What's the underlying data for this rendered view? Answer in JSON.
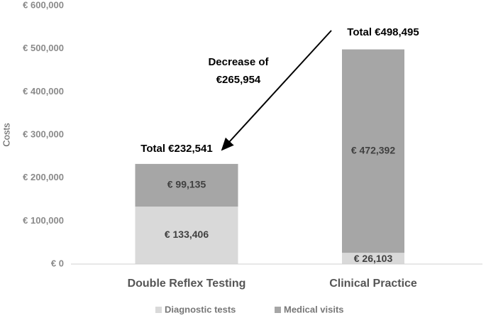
{
  "chart_data": {
    "type": "bar",
    "stacked": true,
    "y_label": "Costs",
    "categories": [
      "Double Reflex Testing",
      "Clinical Practice"
    ],
    "series": [
      {
        "name": "Diagnostic tests",
        "color": "#d9d9d9",
        "values": [
          133406,
          26103
        ],
        "value_labels": [
          "€ 133,406",
          "€ 26,103"
        ]
      },
      {
        "name": "Medical visits",
        "color": "#a6a6a6",
        "values": [
          99135,
          472392
        ],
        "value_labels": [
          "€ 99,135",
          "€ 472,392"
        ]
      }
    ],
    "ylim": [
      0,
      600000
    ],
    "yticks": [
      {
        "value": 0,
        "label": "€ 0"
      },
      {
        "value": 100000,
        "label": "€ 100,000"
      },
      {
        "value": 200000,
        "label": "€ 200,000"
      },
      {
        "value": 300000,
        "label": "€ 300,000"
      },
      {
        "value": 400000,
        "label": "€ 400,000"
      },
      {
        "value": 500000,
        "label": "€ 500,000"
      },
      {
        "value": 600000,
        "label": "€ 600,000"
      }
    ],
    "annotations": [
      "Total €232,541",
      "Total €498,495",
      "Decrease of",
      "€265,954"
    ],
    "legend": "bottom",
    "grid": false
  }
}
